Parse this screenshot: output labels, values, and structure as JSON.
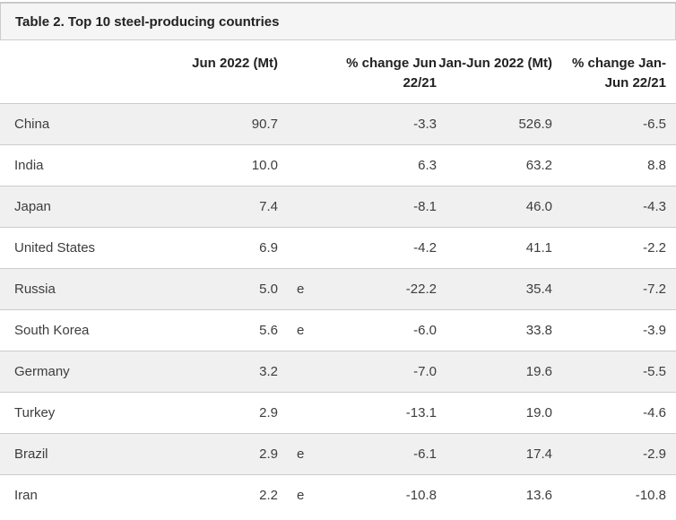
{
  "chart_data": {
    "type": "table",
    "title": "Table 2. Top 10 steel-producing countries",
    "columns": {
      "country": "",
      "jun_2022_mt": "Jun 2022 (Mt)",
      "estimate_flag": "",
      "pct_change_jun_22_21": "% change Jun 22/21",
      "jan_jun_2022_mt": "Jan-Jun 2022 (Mt)",
      "pct_change_jan_jun_22_21": "% change Jan-Jun 22/21"
    },
    "rows": [
      {
        "country": "China",
        "jun_2022_mt": "90.7",
        "e": "",
        "pct_change_jun_22_21": "-3.3",
        "jan_jun_2022_mt": "526.9",
        "pct_change_jan_jun_22_21": "-6.5"
      },
      {
        "country": "India",
        "jun_2022_mt": "10.0",
        "e": "",
        "pct_change_jun_22_21": "6.3",
        "jan_jun_2022_mt": "63.2",
        "pct_change_jan_jun_22_21": "8.8"
      },
      {
        "country": "Japan",
        "jun_2022_mt": "7.4",
        "e": "",
        "pct_change_jun_22_21": "-8.1",
        "jan_jun_2022_mt": "46.0",
        "pct_change_jan_jun_22_21": "-4.3"
      },
      {
        "country": "United States",
        "jun_2022_mt": "6.9",
        "e": "",
        "pct_change_jun_22_21": "-4.2",
        "jan_jun_2022_mt": "41.1",
        "pct_change_jan_jun_22_21": "-2.2"
      },
      {
        "country": "Russia",
        "jun_2022_mt": "5.0",
        "e": "e",
        "pct_change_jun_22_21": "-22.2",
        "jan_jun_2022_mt": "35.4",
        "pct_change_jan_jun_22_21": "-7.2"
      },
      {
        "country": "South Korea",
        "jun_2022_mt": "5.6",
        "e": "e",
        "pct_change_jun_22_21": "-6.0",
        "jan_jun_2022_mt": "33.8",
        "pct_change_jan_jun_22_21": "-3.9"
      },
      {
        "country": "Germany",
        "jun_2022_mt": "3.2",
        "e": "",
        "pct_change_jun_22_21": "-7.0",
        "jan_jun_2022_mt": "19.6",
        "pct_change_jan_jun_22_21": "-5.5"
      },
      {
        "country": "Turkey",
        "jun_2022_mt": "2.9",
        "e": "",
        "pct_change_jun_22_21": "-13.1",
        "jan_jun_2022_mt": "19.0",
        "pct_change_jan_jun_22_21": "-4.6"
      },
      {
        "country": "Brazil",
        "jun_2022_mt": "2.9",
        "e": "e",
        "pct_change_jun_22_21": "-6.1",
        "jan_jun_2022_mt": "17.4",
        "pct_change_jan_jun_22_21": "-2.9"
      },
      {
        "country": "Iran",
        "jun_2022_mt": "2.2",
        "e": "e",
        "pct_change_jun_22_21": "-10.8",
        "jan_jun_2022_mt": "13.6",
        "pct_change_jan_jun_22_21": "-10.8"
      }
    ],
    "layout": {
      "zebra_striping": true,
      "numeric_alignment": "right"
    }
  },
  "colors": {
    "caption_background": "#f5f5f5",
    "stripe_row_background": "#f0f0f0",
    "row_border": "#cccccc",
    "title_text": "#222222",
    "cell_text": "#3d3d3d"
  }
}
